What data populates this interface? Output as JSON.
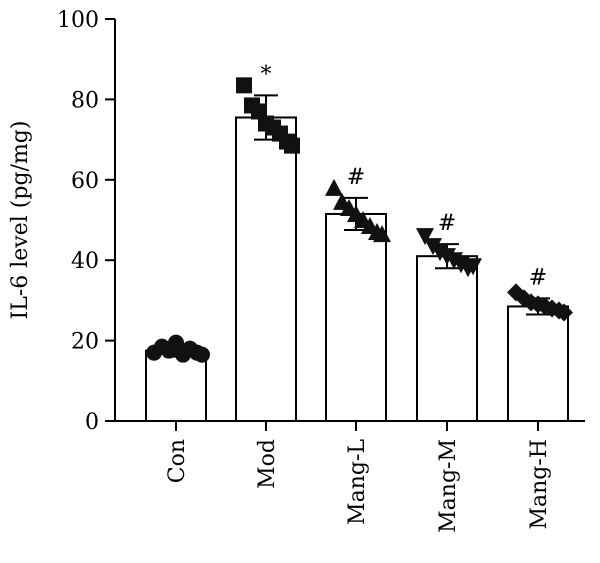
{
  "chart_data": {
    "type": "bar",
    "ylabel": "IL-6 level (pg/mg)",
    "xlabel": "",
    "title": "",
    "ylim": [
      0,
      100
    ],
    "yticks": [
      0,
      20,
      40,
      60,
      80,
      100
    ],
    "grid": false,
    "categories": [
      "Con",
      "Mod",
      "Mang-L",
      "Mang-M",
      "Mang-H"
    ],
    "values": [
      17.5,
      75.5,
      51.5,
      41.0,
      28.5
    ],
    "errors": [
      1.5,
      5.5,
      4.0,
      3.0,
      2.0
    ],
    "significance": [
      "",
      "*",
      "#",
      "#",
      "#"
    ],
    "markers": [
      "circle",
      "square",
      "triangle-up",
      "triangle-down",
      "diamond"
    ],
    "points": [
      [
        17.0,
        18.5,
        17.5,
        19.5,
        16.5,
        18.0,
        17.0,
        16.5
      ],
      [
        83.5,
        78.5,
        77.0,
        74.0,
        73.0,
        71.5,
        69.5,
        68.5
      ],
      [
        58.0,
        54.5,
        53.0,
        51.5,
        50.0,
        48.5,
        47.0,
        46.5
      ],
      [
        46.0,
        43.5,
        42.0,
        41.0,
        40.0,
        39.0,
        38.0,
        38.5
      ],
      [
        32.0,
        30.5,
        29.5,
        29.0,
        28.5,
        28.0,
        27.5,
        27.0
      ]
    ]
  }
}
